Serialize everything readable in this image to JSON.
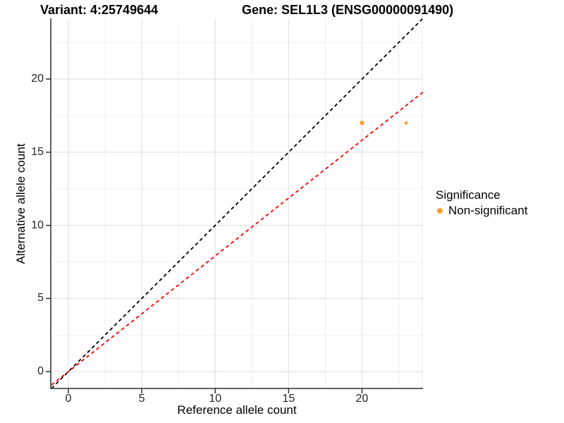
{
  "chart_data": {
    "type": "scatter",
    "titles": [
      "Variant: 4:25749644",
      "Gene: SEL1L3 (ENSG00000091490)"
    ],
    "xlabel": "Reference allele count",
    "ylabel": "Alternative allele count",
    "xlim": [
      -1.15,
      24.15
    ],
    "ylim": [
      -1.15,
      24.15
    ],
    "x_ticks": [
      0,
      5,
      10,
      15,
      20
    ],
    "y_ticks": [
      0,
      5,
      10,
      15,
      20
    ],
    "x_minor_ticks": [
      2.5,
      7.5,
      12.5,
      17.5,
      22.5
    ],
    "y_minor_ticks": [
      2.5,
      7.5,
      12.5,
      17.5,
      22.5
    ],
    "grid": true,
    "points": [
      {
        "x": 20,
        "y": 17,
        "r": 3.2
      },
      {
        "x": 23,
        "y": 17,
        "r": 2.4
      }
    ],
    "lines": [
      {
        "name": "identity-line",
        "slope": 1,
        "intercept": 0,
        "color": "#000000",
        "dash": "5,4"
      },
      {
        "name": "expected-ratio-line",
        "slope": 0.791,
        "intercept": 0,
        "color": "#FF0000",
        "dash": "5,4"
      }
    ],
    "legend": {
      "title": "Significance",
      "items": [
        {
          "label": "Non-significant",
          "color": "#F9A030"
        }
      ]
    },
    "colors": {
      "point": "#F9A030",
      "grid_major": "#E3E3E3",
      "grid_minor": "#F0F0F0",
      "panel_edge": "#E9E9E9",
      "axis": "#4C4C4C",
      "tick": "#333333"
    }
  }
}
